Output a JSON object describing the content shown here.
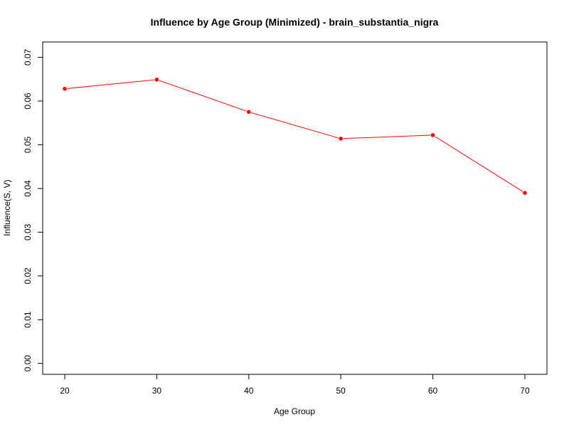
{
  "chart_data": {
    "type": "line",
    "title": "Influence by Age Group (Minimized) - brain_substantia_nigra",
    "xlabel": "Age Group",
    "ylabel": "Influence(S, V)",
    "x": [
      20,
      30,
      40,
      50,
      60,
      70
    ],
    "series": [
      {
        "values": [
          0.0628,
          0.0649,
          0.0575,
          0.0514,
          0.0522,
          0.039
        ]
      }
    ],
    "x_ticks": [
      "20",
      "30",
      "40",
      "50",
      "60",
      "70"
    ],
    "y_ticks": [
      "0.00",
      "0.01",
      "0.02",
      "0.03",
      "0.04",
      "0.05",
      "0.06",
      "0.07"
    ],
    "xlim": [
      17.6,
      72.4
    ],
    "ylim": [
      -0.0025,
      0.0735
    ],
    "grid": false,
    "colors": {
      "line": "#ff0000",
      "point": "#ff0000",
      "axis": "#000000"
    }
  }
}
